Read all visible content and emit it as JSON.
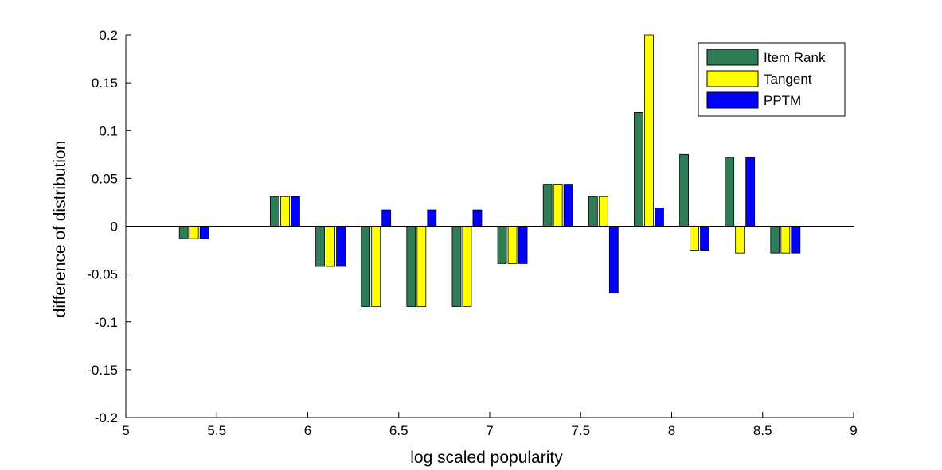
{
  "chart_data": {
    "type": "bar",
    "xlabel": "log scaled popularity",
    "ylabel": "difference of distribution",
    "xlim": [
      5,
      9
    ],
    "ylim": [
      -0.2,
      0.2
    ],
    "xticks": [
      "5",
      "5.5",
      "6",
      "6.5",
      "7",
      "7.5",
      "8",
      "8.5",
      "9"
    ],
    "yticks": [
      "-0.2",
      "-0.15",
      "-0.1",
      "-0.05",
      "0",
      "0.05",
      "0.1",
      "0.15",
      "0.2"
    ],
    "grid": false,
    "legend_position": "top-right",
    "categories": [
      5.375,
      5.875,
      6.125,
      6.375,
      6.625,
      6.875,
      7.125,
      7.375,
      7.625,
      7.875,
      8.125,
      8.375,
      8.625
    ],
    "series": [
      {
        "name": "Item Rank",
        "color": "#2e7d57",
        "values": [
          -0.013,
          0.031,
          -0.042,
          -0.084,
          -0.084,
          -0.084,
          -0.039,
          0.044,
          0.031,
          0.119,
          0.075,
          0.072,
          -0.028
        ]
      },
      {
        "name": "Tangent",
        "color": "#ffff00",
        "values": [
          -0.013,
          0.031,
          -0.042,
          -0.084,
          -0.084,
          -0.084,
          -0.039,
          0.044,
          0.031,
          0.2,
          -0.025,
          -0.028,
          -0.028
        ]
      },
      {
        "name": "PPTM",
        "color": "#0000ff",
        "values": [
          -0.013,
          0.031,
          -0.042,
          0.017,
          0.017,
          0.017,
          -0.039,
          0.044,
          -0.07,
          0.019,
          -0.025,
          0.072,
          -0.028
        ]
      }
    ]
  }
}
